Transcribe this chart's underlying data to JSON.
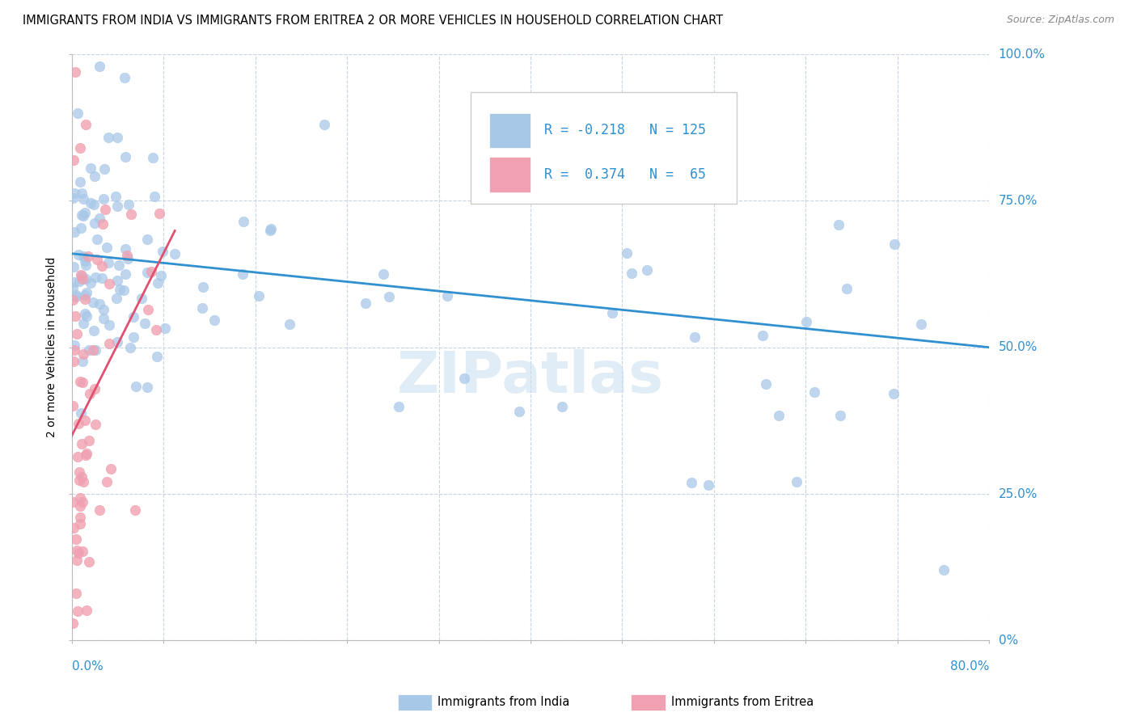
{
  "title": "IMMIGRANTS FROM INDIA VS IMMIGRANTS FROM ERITREA 2 OR MORE VEHICLES IN HOUSEHOLD CORRELATION CHART",
  "source": "Source: ZipAtlas.com",
  "ylabel_label": "2 or more Vehicles in Household",
  "legend_india": {
    "R": -0.218,
    "N": 125
  },
  "legend_eritrea": {
    "R": 0.374,
    "N": 65
  },
  "india_color": "#a8c8e8",
  "eritrea_color": "#f0a0b0",
  "india_line_color": "#3090d0",
  "eritrea_line_color": "#e05070",
  "tick_color": "#3090d0",
  "watermark": "ZIPatlas",
  "background_color": "#ffffff",
  "grid_color": "#c8d4e4",
  "xmin": 0.0,
  "xmax": 0.8,
  "ymin": 0.0,
  "ymax": 1.0
}
